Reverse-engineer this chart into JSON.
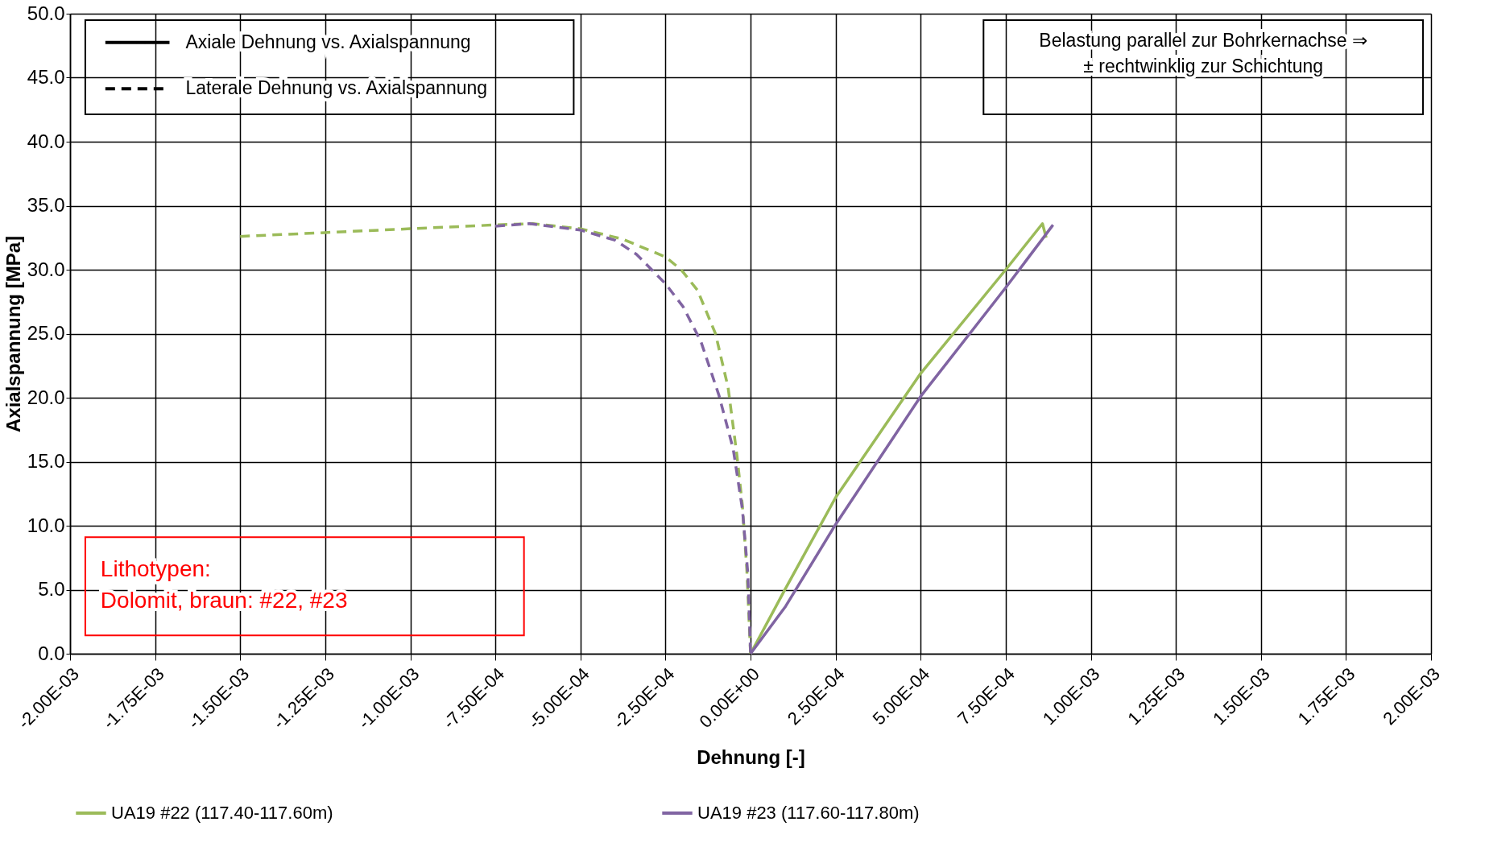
{
  "chart_data": {
    "type": "line",
    "xlabel": "Dehnung [-]",
    "ylabel": "Axialspannung [MPa]",
    "xlim": [
      -0.002,
      0.002
    ],
    "ylim": [
      0,
      50
    ],
    "xticks": [
      {
        "value": -0.002,
        "label": "-2.00E-03"
      },
      {
        "value": -0.00175,
        "label": "-1.75E-03"
      },
      {
        "value": -0.0015,
        "label": "-1.50E-03"
      },
      {
        "value": -0.00125,
        "label": "-1.25E-03"
      },
      {
        "value": -0.001,
        "label": "-1.00E-03"
      },
      {
        "value": -0.00075,
        "label": "-7.50E-04"
      },
      {
        "value": -0.0005,
        "label": "-5.00E-04"
      },
      {
        "value": -0.00025,
        "label": "-2.50E-04"
      },
      {
        "value": 0,
        "label": "0.00E+00"
      },
      {
        "value": 0.00025,
        "label": "2.50E-04"
      },
      {
        "value": 0.0005,
        "label": "5.00E-04"
      },
      {
        "value": 0.00075,
        "label": "7.50E-04"
      },
      {
        "value": 0.001,
        "label": "1.00E-03"
      },
      {
        "value": 0.00125,
        "label": "1.25E-03"
      },
      {
        "value": 0.0015,
        "label": "1.50E-03"
      },
      {
        "value": 0.00175,
        "label": "1.75E-03"
      },
      {
        "value": 0.002,
        "label": "2.00E-03"
      }
    ],
    "yticks": [
      {
        "value": 0,
        "label": "0.0"
      },
      {
        "value": 5,
        "label": "5.0"
      },
      {
        "value": 10,
        "label": "10.0"
      },
      {
        "value": 15,
        "label": "15.0"
      },
      {
        "value": 20,
        "label": "20.0"
      },
      {
        "value": 25,
        "label": "25.0"
      },
      {
        "value": 30,
        "label": "30.0"
      },
      {
        "value": 35,
        "label": "35.0"
      },
      {
        "value": 40,
        "label": "40.0"
      },
      {
        "value": 45,
        "label": "45.0"
      },
      {
        "value": 50,
        "label": "50.0"
      }
    ],
    "grid": true,
    "legend": "bottom",
    "marker": "none",
    "series": [
      {
        "name": "UA19 #22 (117.40-117.60m)",
        "color": "#9bbb59",
        "line_style": "solid",
        "x": [
          0,
          0.000103,
          0.00025,
          0.0005,
          0.00075,
          0.000858,
          0.000869
        ],
        "values": [
          0,
          5.1,
          12.2,
          21.9,
          30.0,
          33.6,
          32.5
        ]
      },
      {
        "color": "#9bbb59",
        "line_style": "dashed",
        "x": [
          -0.0015,
          -0.00125,
          -0.001,
          -0.00075,
          -0.00064,
          -0.0005,
          -0.000377,
          -0.00025,
          -0.000204,
          -0.000156,
          -0.000103,
          -6.6e-05,
          -4e-05,
          -2.4e-05,
          -1.1e-05,
          0
        ],
        "values": [
          32.6,
          32.9,
          33.2,
          33.5,
          33.6,
          33.2,
          32.4,
          31.0,
          30.0,
          28.4,
          25.0,
          20.8,
          15.5,
          11.6,
          6.6,
          0
        ]
      },
      {
        "name": "UA19 #23 (117.60-117.80m)",
        "color": "#8064a2",
        "line_style": "solid",
        "x": [
          0,
          0.000103,
          0.00025,
          0.0005,
          0.00075,
          0.000889
        ],
        "values": [
          0,
          3.7,
          10.1,
          20.1,
          28.6,
          33.5
        ]
      },
      {
        "color": "#8064a2",
        "line_style": "dashed",
        "x": [
          -0.00075,
          -0.00065,
          -0.0005,
          -0.000398,
          -0.000335,
          -0.00025,
          -0.000198,
          -0.000146,
          -9.3e-05,
          -5.1e-05,
          -2.4e-05,
          -8e-06,
          0
        ],
        "values": [
          33.4,
          33.6,
          33.1,
          32.3,
          31.2,
          28.9,
          27.1,
          24.4,
          20.2,
          16.0,
          11.3,
          6.3,
          0
        ]
      }
    ],
    "annotations": [
      "Axiale Dehnung vs. Axialspannung",
      "Laterale Dehnung vs. Axialspannung",
      "Belastung parallel zur Bohrkernachse ⇒\n± rechtwinklig zur Schichtung",
      "Lithotypen:\nDolomit, braun: #22, #23"
    ]
  }
}
